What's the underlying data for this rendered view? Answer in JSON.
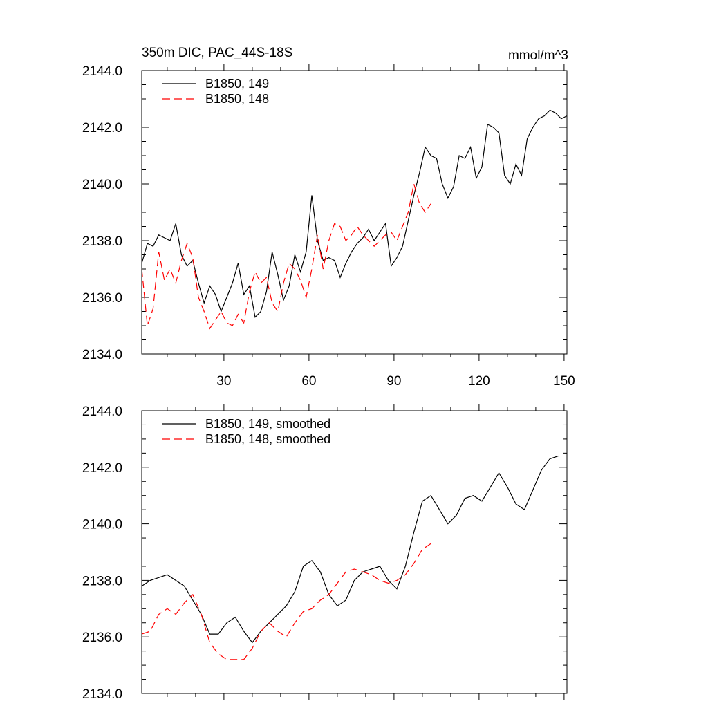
{
  "colors": {
    "s149": "#000000",
    "s148": "#ff0000",
    "axis": "#000000",
    "background": "#ffffff"
  },
  "chart_data": [
    {
      "type": "line",
      "title": "350m DIC, PAC_44S-18S",
      "units": "mmol/m^3",
      "xlim": [
        1,
        151
      ],
      "ylim": [
        2134.0,
        2144.0
      ],
      "xticks": [
        30,
        60,
        90,
        120,
        150
      ],
      "xtick_labels": [
        "30",
        "60",
        "90",
        "120",
        "150"
      ],
      "yticks": [
        2134.0,
        2136.0,
        2138.0,
        2140.0,
        2142.0,
        2144.0
      ],
      "ytick_labels": [
        "2134.0",
        "2136.0",
        "2138.0",
        "2140.0",
        "2142.0",
        "2144.0"
      ],
      "legend": {
        "position": "top-left",
        "labels": [
          "B1850, 149",
          "B1850, 148"
        ]
      },
      "series": [
        {
          "name": "B1850, 149",
          "style": "solid",
          "color_key": "s149",
          "x": [
            1,
            3,
            5,
            7,
            9,
            11,
            13,
            15,
            17,
            19,
            21,
            23,
            25,
            27,
            29,
            31,
            33,
            35,
            37,
            39,
            41,
            43,
            45,
            47,
            49,
            51,
            53,
            55,
            57,
            59,
            61,
            63,
            65,
            67,
            69,
            71,
            73,
            75,
            77,
            79,
            81,
            83,
            85,
            87,
            89,
            91,
            93,
            95,
            97,
            99,
            101,
            103,
            105,
            107,
            109,
            111,
            113,
            115,
            117,
            119,
            121,
            123,
            125,
            127,
            129,
            131,
            133,
            135,
            137,
            139,
            141,
            143,
            145,
            147,
            149,
            151
          ],
          "values": [
            2137.2,
            2137.9,
            2137.8,
            2138.2,
            2138.1,
            2138.0,
            2138.6,
            2137.5,
            2137.1,
            2137.3,
            2136.5,
            2135.8,
            2136.4,
            2136.1,
            2135.5,
            2136.0,
            2136.5,
            2137.2,
            2136.1,
            2136.4,
            2135.3,
            2135.5,
            2136.2,
            2137.6,
            2136.8,
            2135.9,
            2136.4,
            2137.5,
            2136.9,
            2137.6,
            2139.6,
            2138.0,
            2137.3,
            2137.4,
            2137.3,
            2136.7,
            2137.2,
            2137.6,
            2137.9,
            2138.1,
            2138.4,
            2138.0,
            2138.3,
            2138.6,
            2137.1,
            2137.4,
            2137.8,
            2138.7,
            2139.6,
            2140.4,
            2141.3,
            2141.0,
            2140.9,
            2140.0,
            2139.5,
            2139.9,
            2141.0,
            2140.9,
            2141.3,
            2140.2,
            2140.6,
            2142.1,
            2142.0,
            2141.8,
            2140.3,
            2140.0,
            2140.7,
            2140.3,
            2141.6,
            2142.0,
            2142.3,
            2142.4,
            2142.6,
            2142.5,
            2142.3,
            2142.4
          ]
        },
        {
          "name": "B1850, 148",
          "style": "dashed",
          "color_key": "s148",
          "x": [
            1,
            3,
            5,
            7,
            9,
            11,
            13,
            15,
            17,
            19,
            21,
            23,
            25,
            27,
            29,
            31,
            33,
            35,
            37,
            39,
            41,
            43,
            45,
            47,
            49,
            51,
            53,
            55,
            57,
            59,
            61,
            63,
            65,
            67,
            69,
            71,
            73,
            75,
            77,
            79,
            81,
            83,
            85,
            87,
            89,
            91,
            93,
            95,
            97,
            99,
            101,
            103
          ],
          "values": [
            2137.0,
            2135.0,
            2135.6,
            2137.6,
            2136.6,
            2137.0,
            2136.5,
            2137.3,
            2137.9,
            2137.4,
            2136.0,
            2135.5,
            2134.9,
            2135.2,
            2135.5,
            2135.1,
            2135.0,
            2135.4,
            2135.1,
            2136.2,
            2136.9,
            2136.5,
            2136.7,
            2135.8,
            2135.5,
            2136.5,
            2137.2,
            2137.0,
            2136.6,
            2136.0,
            2137.0,
            2138.2,
            2137.0,
            2138.0,
            2138.6,
            2138.5,
            2138.0,
            2138.2,
            2138.5,
            2138.2,
            2138.0,
            2137.8,
            2138.0,
            2138.2,
            2138.3,
            2138.0,
            2138.5,
            2139.0,
            2140.0,
            2139.3,
            2139.0,
            2139.3
          ]
        }
      ]
    },
    {
      "type": "line",
      "title": "",
      "xlim": [
        1,
        151
      ],
      "ylim": [
        2134.0,
        2144.0
      ],
      "xticks": [
        30,
        60,
        90,
        120,
        150
      ],
      "yticks": [
        2134.0,
        2136.0,
        2138.0,
        2140.0,
        2142.0,
        2144.0
      ],
      "ytick_labels": [
        "2134.0",
        "2136.0",
        "2138.0",
        "2140.0",
        "2142.0",
        "2144.0"
      ],
      "legend": {
        "position": "top-left",
        "labels": [
          "B1850, 149, smoothed",
          "B1850, 148, smoothed"
        ]
      },
      "series": [
        {
          "name": "B1850, 149, smoothed",
          "style": "solid",
          "color_key": "s149",
          "x": [
            1,
            4,
            7,
            10,
            13,
            16,
            19,
            22,
            25,
            28,
            31,
            34,
            37,
            40,
            43,
            46,
            49,
            52,
            55,
            58,
            61,
            64,
            67,
            70,
            73,
            76,
            79,
            82,
            85,
            88,
            91,
            94,
            97,
            100,
            103,
            106,
            109,
            112,
            115,
            118,
            121,
            124,
            127,
            130,
            133,
            136,
            139,
            142,
            145,
            148
          ],
          "values": [
            2137.8,
            2138.0,
            2138.1,
            2138.2,
            2138.0,
            2137.8,
            2137.3,
            2136.8,
            2136.1,
            2136.1,
            2136.5,
            2136.7,
            2136.2,
            2135.8,
            2136.2,
            2136.5,
            2136.8,
            2137.1,
            2137.6,
            2138.5,
            2138.7,
            2138.3,
            2137.5,
            2137.1,
            2137.3,
            2138.0,
            2138.3,
            2138.4,
            2138.5,
            2138.0,
            2137.7,
            2138.5,
            2139.7,
            2140.8,
            2141.0,
            2140.5,
            2140.0,
            2140.3,
            2140.9,
            2141.0,
            2140.8,
            2141.3,
            2141.8,
            2141.3,
            2140.7,
            2140.5,
            2141.2,
            2141.9,
            2142.3,
            2142.4
          ]
        },
        {
          "name": "B1850, 148, smoothed",
          "style": "dashed",
          "color_key": "s148",
          "x": [
            1,
            4,
            7,
            10,
            13,
            16,
            19,
            22,
            25,
            28,
            31,
            34,
            37,
            40,
            43,
            46,
            49,
            52,
            55,
            58,
            61,
            64,
            67,
            70,
            73,
            76,
            79,
            82,
            85,
            88,
            91,
            94,
            97,
            100,
            103
          ],
          "values": [
            2136.1,
            2136.2,
            2136.8,
            2137.0,
            2136.8,
            2137.2,
            2137.5,
            2136.8,
            2135.8,
            2135.4,
            2135.2,
            2135.2,
            2135.2,
            2135.6,
            2136.2,
            2136.5,
            2136.2,
            2136.0,
            2136.5,
            2136.9,
            2137.0,
            2137.3,
            2137.5,
            2137.9,
            2138.3,
            2138.4,
            2138.3,
            2138.2,
            2138.0,
            2137.9,
            2138.0,
            2138.2,
            2138.6,
            2139.1,
            2139.3
          ]
        }
      ]
    }
  ]
}
